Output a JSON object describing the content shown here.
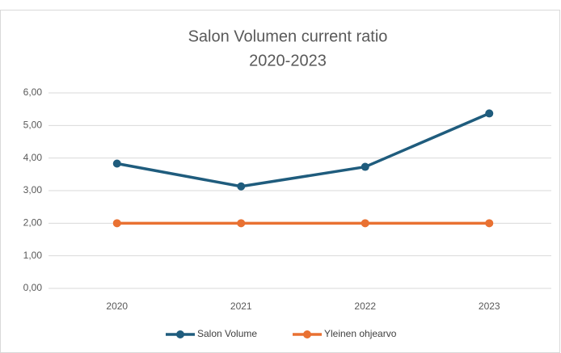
{
  "chart_data": {
    "type": "line",
    "title": "Salon Volumen current ratio",
    "subtitle": "2020-2023",
    "categories": [
      "2020",
      "2021",
      "2022",
      "2023"
    ],
    "series": [
      {
        "name": "Salon Volume",
        "color": "#1f5c7d",
        "values": [
          3.83,
          3.13,
          3.73,
          5.37
        ]
      },
      {
        "name": "Yleinen ohjearvo",
        "color": "#e97132",
        "values": [
          2,
          2,
          2,
          2
        ]
      }
    ],
    "ylim": [
      0,
      6
    ],
    "yticks": [
      {
        "value": 0,
        "label": "0,00"
      },
      {
        "value": 1,
        "label": "1,00"
      },
      {
        "value": 2,
        "label": "2,00"
      },
      {
        "value": 3,
        "label": "3,00"
      },
      {
        "value": 4,
        "label": "4,00"
      },
      {
        "value": 5,
        "label": "5,00"
      },
      {
        "value": 6,
        "label": "6,00"
      }
    ],
    "grid": true,
    "legend": "bottom"
  }
}
